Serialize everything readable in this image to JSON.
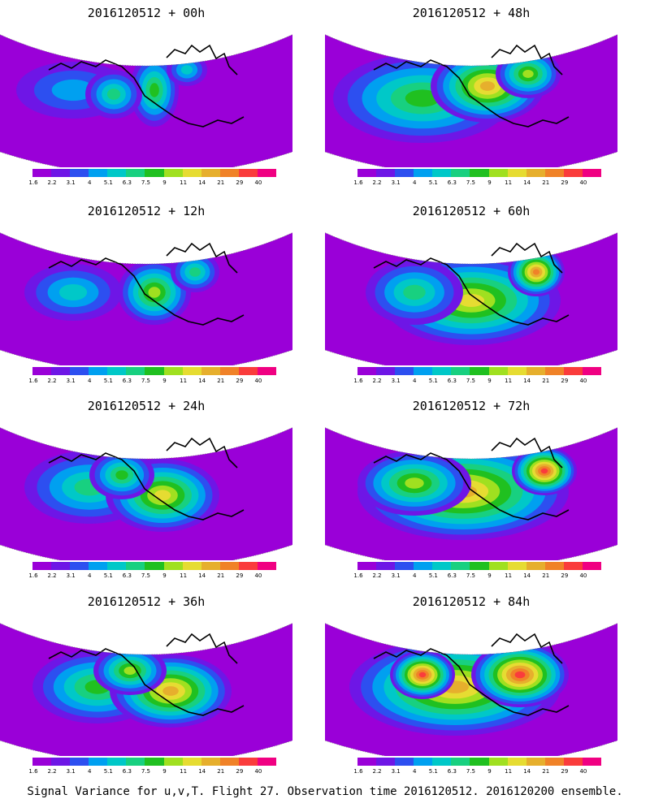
{
  "panels": [
    {
      "id": "p00",
      "title": "2016120512 + 00h",
      "lead_hours": 0
    },
    {
      "id": "p48",
      "title": "2016120512 + 48h",
      "lead_hours": 48
    },
    {
      "id": "p12",
      "title": "2016120512 + 12h",
      "lead_hours": 12
    },
    {
      "id": "p60",
      "title": "2016120512 + 60h",
      "lead_hours": 60
    },
    {
      "id": "p24",
      "title": "2016120512 + 24h",
      "lead_hours": 24
    },
    {
      "id": "p72",
      "title": "2016120512 + 72h",
      "lead_hours": 72
    },
    {
      "id": "p36",
      "title": "2016120512 + 36h",
      "lead_hours": 36
    },
    {
      "id": "p84",
      "title": "2016120512 + 84h",
      "lead_hours": 84
    }
  ],
  "colorbar": {
    "labels": [
      "1.6",
      "2.2",
      "3.1",
      "4",
      "5.1",
      "6.3",
      "7.5",
      "9",
      "11",
      "14",
      "21",
      "29",
      "40"
    ],
    "colors": [
      "#9a00d8",
      "#6e16e6",
      "#2d4ff0",
      "#00a0f0",
      "#00c8c8",
      "#18d080",
      "#20c020",
      "#a0e020",
      "#e6dc32",
      "#e6af2d",
      "#f08228",
      "#fa3c3c",
      "#f00082"
    ]
  },
  "caption": "Signal Variance for u,v,T. Flight 27. Observation time 2016120512. 2016120200 ensemble."
}
